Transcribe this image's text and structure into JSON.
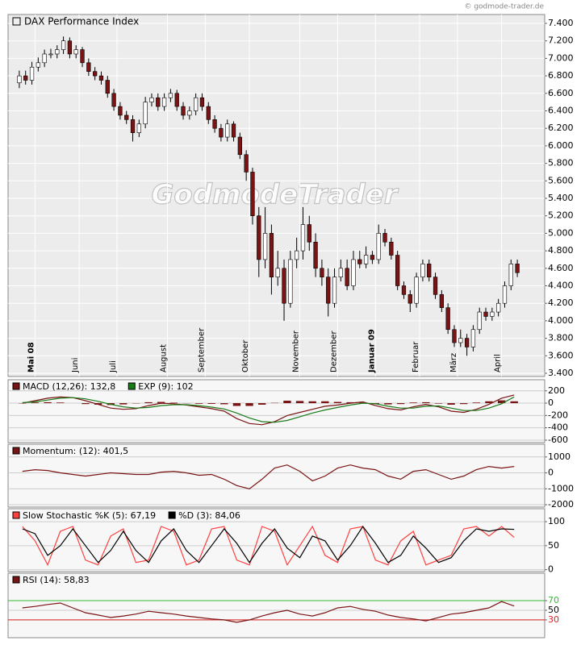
{
  "copyright": "© godmode-trader.de",
  "watermark": "GodmodeTrader",
  "chart_data": [
    {
      "type": "candlestick",
      "title": "DAX Performance Index",
      "grid": true,
      "categories": [
        null,
        null,
        null,
        "Mai 08",
        null,
        null,
        null,
        null,
        null,
        null,
        "Juni",
        null,
        null,
        null,
        null,
        null,
        "Juli",
        null,
        null,
        null,
        null,
        null,
        null,
        null,
        "August",
        null,
        null,
        null,
        null,
        null,
        "September",
        null,
        null,
        null,
        null,
        null,
        null,
        "Oktober",
        null,
        null,
        null,
        null,
        null,
        null,
        null,
        "November",
        null,
        null,
        null,
        null,
        null,
        "Dezember",
        null,
        null,
        null,
        null,
        null,
        "Januar 09",
        null,
        null,
        null,
        null,
        null,
        null,
        "Februar",
        null,
        null,
        null,
        null,
        null,
        "März",
        null,
        null,
        null,
        null,
        null,
        null,
        "April",
        null,
        null
      ],
      "open": [
        6720,
        6800,
        6750,
        6900,
        6950,
        7050,
        7050,
        7100,
        7200,
        7050,
        7100,
        6950,
        6850,
        6800,
        6750,
        6600,
        6450,
        6350,
        6300,
        6150,
        6250,
        6500,
        6550,
        6450,
        6550,
        6600,
        6450,
        6350,
        6400,
        6550,
        6450,
        6300,
        6200,
        6100,
        6250,
        6100,
        5900,
        5700,
        5200,
        4700,
        5000,
        4500,
        4600,
        4200,
        4700,
        4800,
        5100,
        4900,
        4600,
        4500,
        4200,
        4500,
        4600,
        4400,
        4700,
        4650,
        4750,
        4700,
        5000,
        4900,
        4750,
        4400,
        4300,
        4200,
        4500,
        4650,
        4500,
        4300,
        4150,
        3900,
        3750,
        3800,
        3700,
        3900,
        4100,
        4050,
        4100,
        4200,
        4400,
        4650
      ],
      "high": [
        6860,
        6860,
        6960,
        7010,
        7100,
        7110,
        7150,
        7250,
        7240,
        7150,
        7130,
        7000,
        6900,
        6850,
        6800,
        6650,
        6500,
        6400,
        6350,
        6300,
        6560,
        6600,
        6600,
        6600,
        6650,
        6640,
        6500,
        6450,
        6600,
        6600,
        6500,
        6350,
        6250,
        6300,
        6280,
        6150,
        5950,
        5750,
        5300,
        5300,
        5100,
        4800,
        4700,
        4800,
        4950,
        5300,
        5200,
        5000,
        4700,
        4600,
        4600,
        4700,
        4700,
        4800,
        4800,
        4850,
        4800,
        5100,
        5050,
        4950,
        4800,
        4450,
        4350,
        4550,
        4700,
        4700,
        4550,
        4350,
        4200,
        3950,
        3900,
        3850,
        3950,
        4150,
        4150,
        4150,
        4250,
        4450,
        4700,
        4700
      ],
      "low": [
        6660,
        6700,
        6700,
        6850,
        6900,
        7000,
        7000,
        7050,
        7000,
        7000,
        6900,
        6800,
        6750,
        6700,
        6550,
        6400,
        6300,
        6250,
        6050,
        6100,
        6200,
        6450,
        6400,
        6400,
        6500,
        6400,
        6300,
        6300,
        6350,
        6400,
        6250,
        6150,
        6050,
        6050,
        6050,
        5850,
        5600,
        5100,
        4500,
        4600,
        4300,
        4400,
        4000,
        4150,
        4600,
        4700,
        4800,
        4500,
        4400,
        4050,
        4150,
        4450,
        4350,
        4350,
        4600,
        4600,
        4650,
        4650,
        4850,
        4700,
        4350,
        4250,
        4100,
        4150,
        4450,
        4450,
        4250,
        4100,
        3850,
        3700,
        3700,
        3600,
        3650,
        3850,
        4000,
        4000,
        4050,
        4150,
        4350,
        4500
      ],
      "close": [
        6800,
        6750,
        6900,
        6950,
        7050,
        7050,
        7100,
        7200,
        7050,
        7100,
        6950,
        6850,
        6800,
        6750,
        6600,
        6450,
        6350,
        6300,
        6150,
        6250,
        6500,
        6550,
        6450,
        6550,
        6600,
        6450,
        6350,
        6400,
        6550,
        6450,
        6300,
        6200,
        6100,
        6250,
        6100,
        5900,
        5700,
        5200,
        4700,
        5000,
        4500,
        4600,
        4200,
        4700,
        4800,
        5100,
        4900,
        4600,
        4500,
        4200,
        4500,
        4600,
        4400,
        4700,
        4650,
        4750,
        4700,
        5000,
        4900,
        4750,
        4400,
        4300,
        4200,
        4500,
        4650,
        4500,
        4300,
        4150,
        3900,
        3750,
        3800,
        3700,
        3900,
        4100,
        4050,
        4100,
        4200,
        4400,
        4650,
        4550
      ],
      "up_color": "#ffffff",
      "down_color": "#7a1414",
      "ylim": [
        3400,
        7400
      ],
      "yticks": [
        {
          "value": 3400,
          "label": "3.400"
        },
        {
          "value": 3600,
          "label": "3.600"
        },
        {
          "value": 3800,
          "label": "3.800"
        },
        {
          "value": 4000,
          "label": "4.000"
        },
        {
          "value": 4200,
          "label": "4.200"
        },
        {
          "value": 4400,
          "label": "4.400"
        },
        {
          "value": 4600,
          "label": "4.600"
        },
        {
          "value": 4800,
          "label": "4.800"
        },
        {
          "value": 5000,
          "label": "5.000"
        },
        {
          "value": 5200,
          "label": "5.200"
        },
        {
          "value": 5400,
          "label": "5.400"
        },
        {
          "value": 5600,
          "label": "5.600"
        },
        {
          "value": 5800,
          "label": "5.800"
        },
        {
          "value": 6000,
          "label": "6.000"
        },
        {
          "value": 6200,
          "label": "6.200"
        },
        {
          "value": 6400,
          "label": "6.400"
        },
        {
          "value": 6600,
          "label": "6.600"
        },
        {
          "value": 6800,
          "label": "6.800"
        },
        {
          "value": 7000,
          "label": "7.000"
        },
        {
          "value": 7200,
          "label": "7.200"
        },
        {
          "value": 7400,
          "label": "7.400"
        }
      ]
    },
    {
      "type": "line",
      "grid": true,
      "series": [
        {
          "name": "MACD (12,26): 132,8",
          "color": "#7a1414",
          "values": [
            0,
            40,
            80,
            100,
            90,
            40,
            -20,
            -80,
            -100,
            -90,
            -40,
            0,
            -10,
            -30,
            -60,
            -90,
            -130,
            -250,
            -330,
            -350,
            -300,
            -200,
            -150,
            -100,
            -50,
            -30,
            0,
            20,
            -40,
            -90,
            -110,
            -60,
            -20,
            -60,
            -130,
            -150,
            -100,
            -20,
            80,
            132.8
          ]
        },
        {
          "name": "EXP (9): 102",
          "color": "#1a7a1a",
          "values": [
            10,
            20,
            50,
            80,
            90,
            70,
            30,
            -20,
            -60,
            -80,
            -70,
            -40,
            -25,
            -25,
            -40,
            -65,
            -95,
            -160,
            -240,
            -300,
            -310,
            -280,
            -220,
            -160,
            -110,
            -70,
            -30,
            0,
            -10,
            -50,
            -80,
            -80,
            -50,
            -45,
            -80,
            -120,
            -120,
            -80,
            -10,
            102
          ]
        }
      ],
      "histogram": {
        "color": "#7a1414",
        "values": [
          -5,
          10,
          15,
          10,
          0,
          -15,
          -25,
          -30,
          -20,
          -5,
          15,
          20,
          8,
          -3,
          -10,
          -12,
          -18,
          -45,
          -45,
          -25,
          5,
          40,
          35,
          30,
          30,
          20,
          15,
          10,
          -15,
          -20,
          -15,
          10,
          15,
          -8,
          -25,
          -15,
          10,
          30,
          45,
          30
        ]
      },
      "ylim": [
        -640,
        380
      ],
      "yticks": [
        200,
        0,
        -200,
        -400,
        -600
      ]
    },
    {
      "type": "line",
      "grid": true,
      "series": [
        {
          "name": "Momentum: (12): 401,5",
          "color": "#7a1414",
          "values": [
            100,
            200,
            150,
            0,
            -100,
            -200,
            -100,
            0,
            -50,
            -100,
            -100,
            50,
            100,
            0,
            -150,
            -100,
            -400,
            -800,
            -1000,
            -400,
            300,
            500,
            100,
            -500,
            -200,
            300,
            500,
            300,
            200,
            -200,
            -400,
            100,
            200,
            -100,
            -400,
            -200,
            200,
            400,
            300,
            401.5
          ]
        }
      ],
      "ylim": [
        -2150,
        1800
      ],
      "yticks": [
        1000,
        0,
        -1000,
        -2000
      ]
    },
    {
      "type": "line",
      "grid": true,
      "series": [
        {
          "name": "Slow Stochastic %K (5): 67,19",
          "color": "#ff4040",
          "values": [
            90,
            60,
            10,
            80,
            90,
            20,
            10,
            70,
            85,
            15,
            20,
            90,
            80,
            10,
            20,
            85,
            90,
            20,
            10,
            90,
            80,
            10,
            50,
            90,
            30,
            15,
            85,
            90,
            20,
            10,
            60,
            80,
            10,
            20,
            30,
            85,
            90,
            70,
            90,
            67.19
          ]
        },
        {
          "name": "%D (3): 84,06",
          "color": "#000000",
          "values": [
            85,
            75,
            30,
            50,
            85,
            50,
            15,
            40,
            80,
            40,
            15,
            60,
            85,
            40,
            15,
            50,
            85,
            55,
            15,
            55,
            85,
            45,
            25,
            70,
            60,
            20,
            50,
            90,
            55,
            15,
            30,
            70,
            45,
            15,
            25,
            60,
            85,
            80,
            85,
            84.06
          ]
        }
      ],
      "ylim": [
        -4,
        127
      ],
      "yticks": [
        100,
        50,
        0
      ]
    },
    {
      "type": "line",
      "grid": true,
      "series": [
        {
          "name": "RSI (14): 58,83",
          "color": "#7a1414",
          "values": [
            55,
            58,
            62,
            65,
            55,
            45,
            40,
            35,
            38,
            42,
            48,
            45,
            42,
            38,
            35,
            32,
            30,
            25,
            30,
            38,
            45,
            50,
            42,
            38,
            45,
            55,
            58,
            52,
            48,
            40,
            35,
            32,
            28,
            35,
            42,
            45,
            50,
            55,
            68,
            58.83
          ]
        }
      ],
      "hlines": [
        {
          "value": 70,
          "color": "#33bb33"
        },
        {
          "value": 30,
          "color": "#dd2222"
        }
      ],
      "ylim": [
        -7,
        127
      ],
      "yticks": [
        70,
        50,
        30
      ]
    }
  ]
}
